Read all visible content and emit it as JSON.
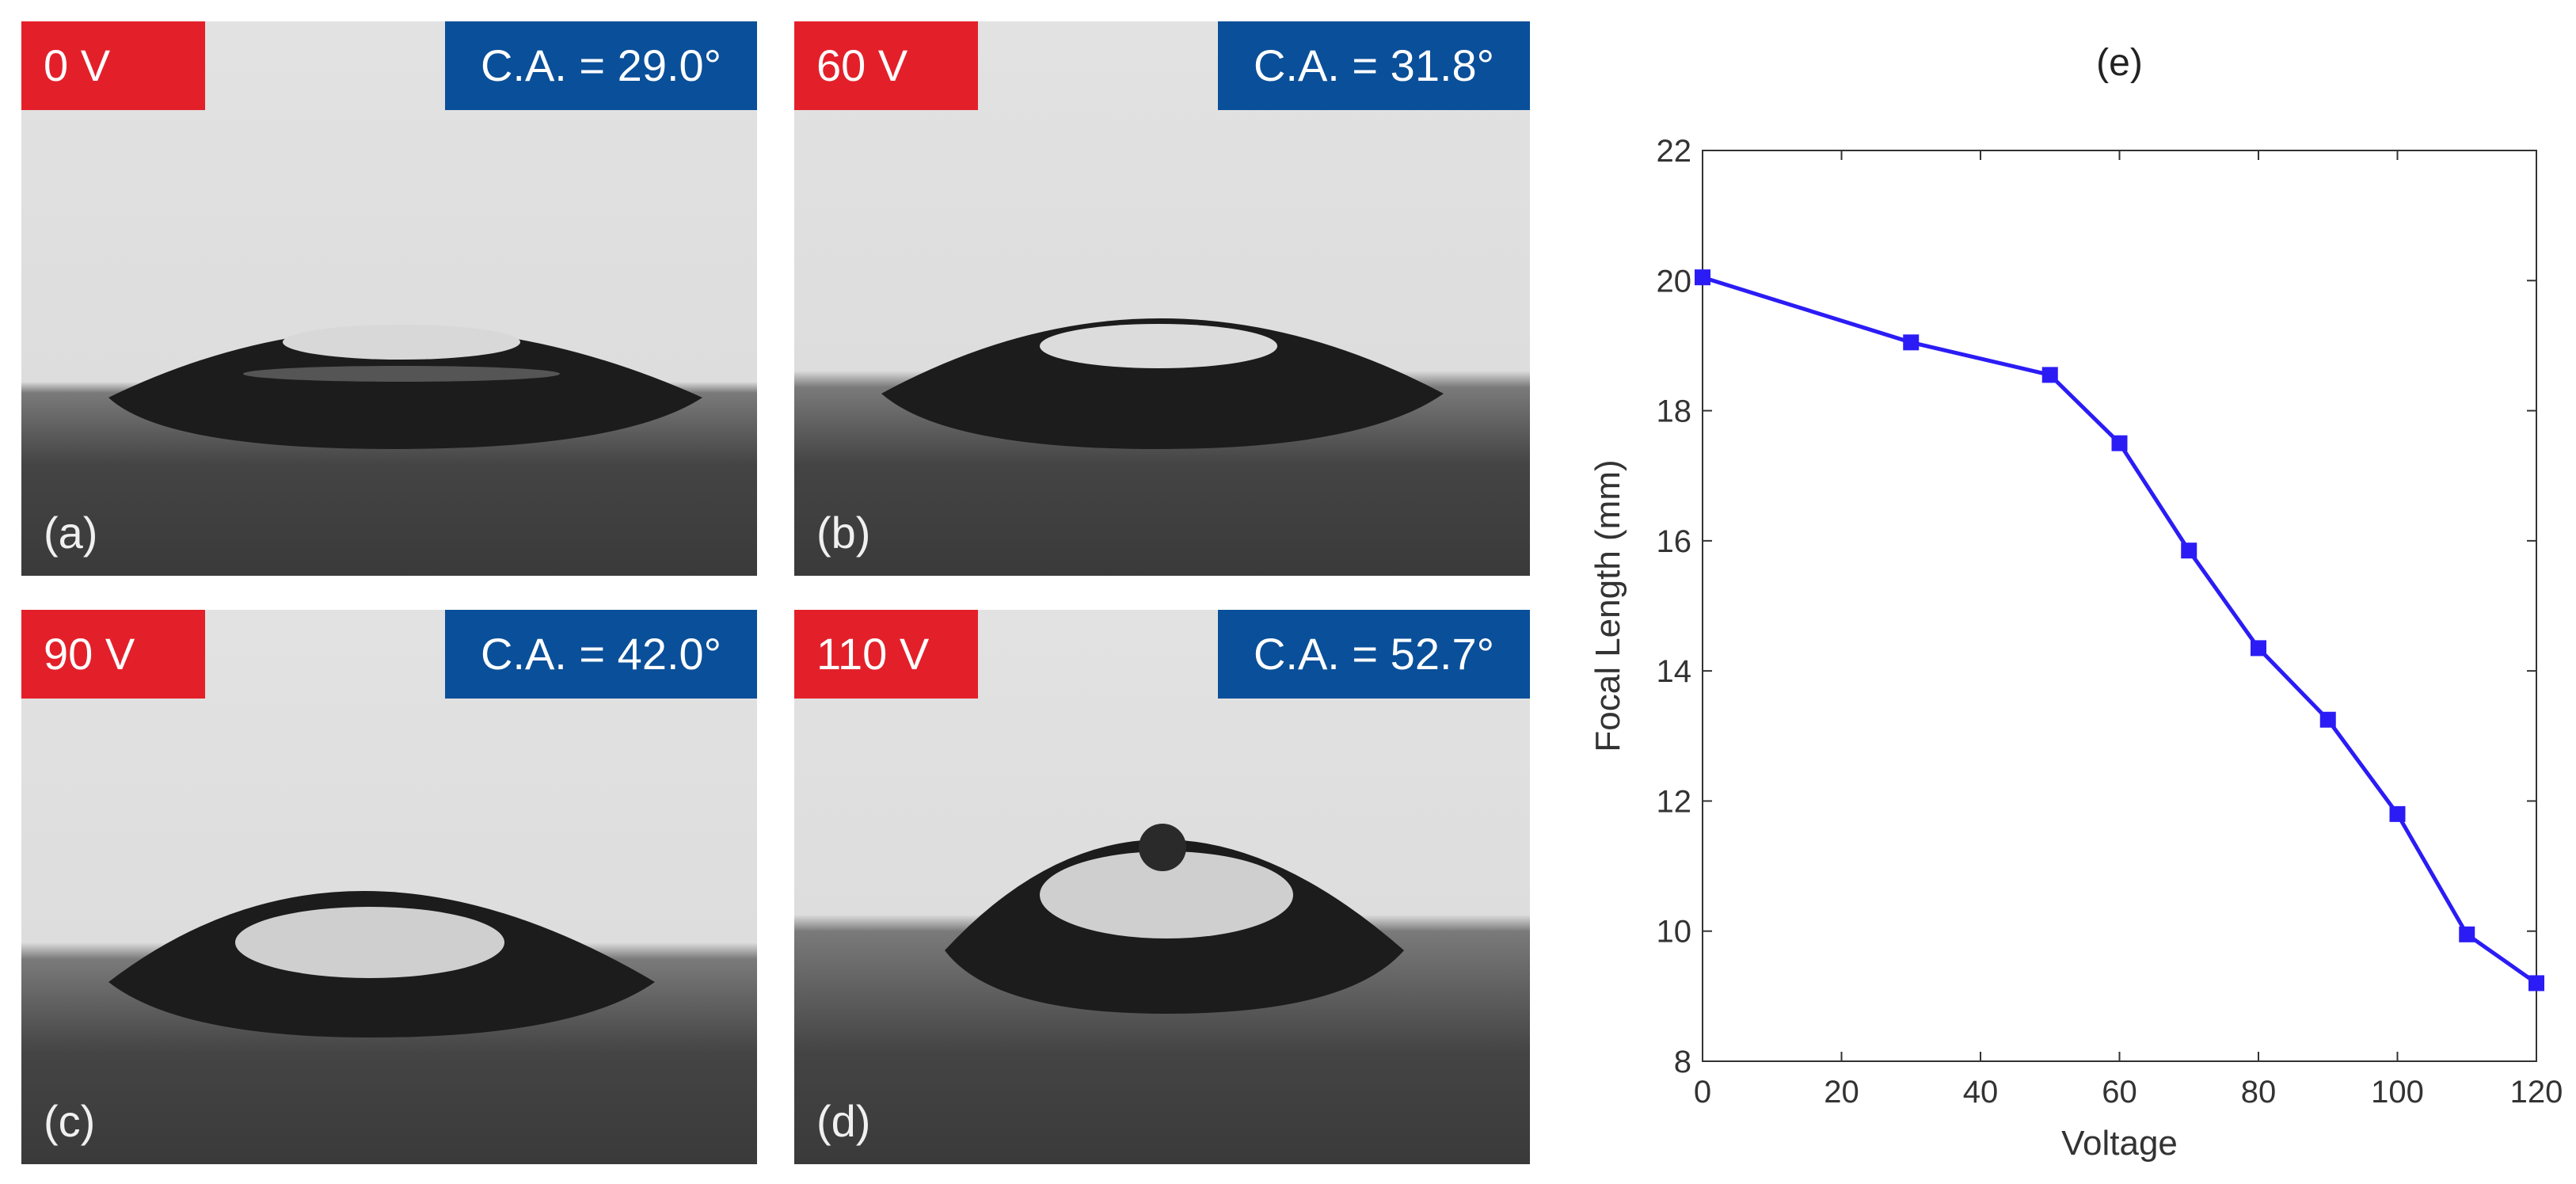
{
  "panels": [
    {
      "id": "a",
      "voltage": "0 V",
      "contact_angle": "C.A. = 29.0°",
      "label": "(a)"
    },
    {
      "id": "b",
      "voltage": "60 V",
      "contact_angle": "C.A. = 31.8°",
      "label": "(b)"
    },
    {
      "id": "c",
      "voltage": "90 V",
      "contact_angle": "C.A. = 42.0°",
      "label": "(c)"
    },
    {
      "id": "d",
      "voltage": "110 V",
      "contact_angle": "C.A. = 52.7°",
      "label": "(d)"
    }
  ],
  "colors": {
    "voltage_badge": "#e3202a",
    "angle_badge": "#0a4f99",
    "series_line": "#2b1cf5"
  },
  "chart_data": {
    "type": "line",
    "title": "(e)",
    "xlabel": "Voltage",
    "ylabel": "Focal Length (mm)",
    "xlim": [
      0,
      120
    ],
    "ylim": [
      8,
      22
    ],
    "xticks": [
      0,
      20,
      40,
      60,
      80,
      100,
      120
    ],
    "yticks": [
      8,
      10,
      12,
      14,
      16,
      18,
      20,
      22
    ],
    "grid": false,
    "series": [
      {
        "name": "Focal Length",
        "x": [
          0,
          30,
          50,
          60,
          70,
          80,
          90,
          100,
          110,
          120
        ],
        "y": [
          20.05,
          19.05,
          18.55,
          17.5,
          15.85,
          14.35,
          13.25,
          11.8,
          9.95,
          9.2
        ]
      }
    ]
  }
}
